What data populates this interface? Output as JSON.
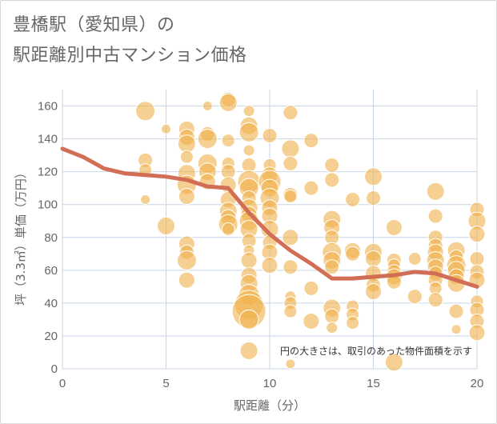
{
  "title_line1": "豊橋駅（愛知県）の",
  "title_line2": "駅距離別中古マンション価格",
  "chart_data": {
    "type": "scatter",
    "xlabel": "駅距離（分）",
    "ylabel": "坪（3.3㎡）単価（万円）",
    "xlim": [
      0,
      20
    ],
    "ylim": [
      0,
      170
    ],
    "xticks": [
      "0",
      "5",
      "10",
      "15",
      "20"
    ],
    "yticks": [
      "0",
      "20",
      "40",
      "60",
      "80",
      "100",
      "120",
      "140",
      "160"
    ],
    "annotation": "円の大きさは、取引のあった物件面積を示す",
    "grid": true,
    "colors": {
      "bubble": "#f0b14a",
      "bubble_stroke": "#ffffff",
      "line": "#d26e55",
      "grid": "#c8d6e6"
    },
    "trend_line": {
      "x": [
        0,
        1,
        2,
        3,
        4,
        5,
        6,
        7,
        8,
        9,
        10,
        11,
        12,
        13,
        14,
        15,
        16,
        17,
        18,
        19,
        20
      ],
      "y": [
        134,
        129,
        122,
        119,
        118,
        117,
        115,
        111,
        110,
        95,
        82,
        72,
        64,
        55,
        55,
        56,
        57,
        59,
        58,
        54,
        50
      ]
    },
    "points": [
      {
        "x": 4,
        "y": 157,
        "s": 12
      },
      {
        "x": 4,
        "y": 127,
        "s": 9
      },
      {
        "x": 4,
        "y": 121,
        "s": 8
      },
      {
        "x": 4,
        "y": 103,
        "s": 6
      },
      {
        "x": 5,
        "y": 146,
        "s": 6
      },
      {
        "x": 5,
        "y": 87,
        "s": 11
      },
      {
        "x": 6,
        "y": 146,
        "s": 10
      },
      {
        "x": 6,
        "y": 141,
        "s": 10
      },
      {
        "x": 6,
        "y": 137,
        "s": 11
      },
      {
        "x": 6,
        "y": 129,
        "s": 8
      },
      {
        "x": 6,
        "y": 119,
        "s": 11
      },
      {
        "x": 6,
        "y": 112,
        "s": 12
      },
      {
        "x": 6,
        "y": 105,
        "s": 10
      },
      {
        "x": 6,
        "y": 76,
        "s": 10
      },
      {
        "x": 6,
        "y": 71,
        "s": 9
      },
      {
        "x": 6,
        "y": 66,
        "s": 12
      },
      {
        "x": 6,
        "y": 54,
        "s": 10
      },
      {
        "x": 7,
        "y": 160,
        "s": 6
      },
      {
        "x": 7,
        "y": 143,
        "s": 9
      },
      {
        "x": 7,
        "y": 140,
        "s": 12
      },
      {
        "x": 7,
        "y": 125,
        "s": 12
      },
      {
        "x": 7,
        "y": 120,
        "s": 11
      },
      {
        "x": 7,
        "y": 114,
        "s": 10
      },
      {
        "x": 8,
        "y": 164,
        "s": 9
      },
      {
        "x": 8,
        "y": 162,
        "s": 11
      },
      {
        "x": 8,
        "y": 139,
        "s": 8
      },
      {
        "x": 8,
        "y": 125,
        "s": 8
      },
      {
        "x": 8,
        "y": 120,
        "s": 9
      },
      {
        "x": 8,
        "y": 112,
        "s": 10
      },
      {
        "x": 8,
        "y": 103,
        "s": 10
      },
      {
        "x": 8,
        "y": 96,
        "s": 11
      },
      {
        "x": 8,
        "y": 92,
        "s": 10
      },
      {
        "x": 8,
        "y": 88,
        "s": 12
      },
      {
        "x": 8,
        "y": 85,
        "s": 8
      },
      {
        "x": 9,
        "y": 157,
        "s": 7
      },
      {
        "x": 9,
        "y": 148,
        "s": 11
      },
      {
        "x": 9,
        "y": 144,
        "s": 12
      },
      {
        "x": 9,
        "y": 133,
        "s": 7
      },
      {
        "x": 9,
        "y": 124,
        "s": 9
      },
      {
        "x": 9,
        "y": 114,
        "s": 14
      },
      {
        "x": 9,
        "y": 110,
        "s": 12
      },
      {
        "x": 9,
        "y": 104,
        "s": 9
      },
      {
        "x": 9,
        "y": 98,
        "s": 11
      },
      {
        "x": 9,
        "y": 94,
        "s": 10
      },
      {
        "x": 9,
        "y": 90,
        "s": 12
      },
      {
        "x": 9,
        "y": 85,
        "s": 11
      },
      {
        "x": 9,
        "y": 78,
        "s": 9
      },
      {
        "x": 9,
        "y": 72,
        "s": 7
      },
      {
        "x": 9,
        "y": 66,
        "s": 10
      },
      {
        "x": 9,
        "y": 57,
        "s": 10
      },
      {
        "x": 9,
        "y": 52,
        "s": 11
      },
      {
        "x": 9,
        "y": 45,
        "s": 13
      },
      {
        "x": 9,
        "y": 39,
        "s": 18
      },
      {
        "x": 9,
        "y": 35,
        "s": 21
      },
      {
        "x": 9,
        "y": 30,
        "s": 12
      },
      {
        "x": 9,
        "y": 11,
        "s": 11
      },
      {
        "x": 10,
        "y": 142,
        "s": 9
      },
      {
        "x": 10,
        "y": 124,
        "s": 8
      },
      {
        "x": 10,
        "y": 118,
        "s": 10
      },
      {
        "x": 10,
        "y": 114,
        "s": 14
      },
      {
        "x": 10,
        "y": 110,
        "s": 11
      },
      {
        "x": 10,
        "y": 104,
        "s": 12
      },
      {
        "x": 10,
        "y": 98,
        "s": 10
      },
      {
        "x": 10,
        "y": 93,
        "s": 10
      },
      {
        "x": 10,
        "y": 85,
        "s": 11
      },
      {
        "x": 10,
        "y": 77,
        "s": 9
      },
      {
        "x": 10,
        "y": 71,
        "s": 10
      },
      {
        "x": 10,
        "y": 63,
        "s": 10
      },
      {
        "x": 11,
        "y": 156,
        "s": 9
      },
      {
        "x": 11,
        "y": 134,
        "s": 11
      },
      {
        "x": 11,
        "y": 125,
        "s": 9
      },
      {
        "x": 11,
        "y": 106,
        "s": 9
      },
      {
        "x": 11,
        "y": 105,
        "s": 8
      },
      {
        "x": 11,
        "y": 80,
        "s": 10
      },
      {
        "x": 11,
        "y": 62,
        "s": 9
      },
      {
        "x": 11,
        "y": 44,
        "s": 7
      },
      {
        "x": 11,
        "y": 40,
        "s": 8
      },
      {
        "x": 11,
        "y": 35,
        "s": 8
      },
      {
        "x": 11,
        "y": 3,
        "s": 6
      },
      {
        "x": 12,
        "y": 139,
        "s": 9
      },
      {
        "x": 12,
        "y": 110,
        "s": 9
      },
      {
        "x": 12,
        "y": 49,
        "s": 9
      },
      {
        "x": 12,
        "y": 29,
        "s": 10
      },
      {
        "x": 13,
        "y": 124,
        "s": 9
      },
      {
        "x": 13,
        "y": 115,
        "s": 9
      },
      {
        "x": 13,
        "y": 91,
        "s": 11
      },
      {
        "x": 13,
        "y": 86,
        "s": 10
      },
      {
        "x": 13,
        "y": 80,
        "s": 9
      },
      {
        "x": 13,
        "y": 71,
        "s": 12
      },
      {
        "x": 13,
        "y": 66,
        "s": 11
      },
      {
        "x": 13,
        "y": 62,
        "s": 9
      },
      {
        "x": 13,
        "y": 37,
        "s": 11
      },
      {
        "x": 13,
        "y": 32,
        "s": 9
      },
      {
        "x": 13,
        "y": 25,
        "s": 7
      },
      {
        "x": 14,
        "y": 103,
        "s": 9
      },
      {
        "x": 14,
        "y": 72,
        "s": 10
      },
      {
        "x": 14,
        "y": 70,
        "s": 9
      },
      {
        "x": 14,
        "y": 38,
        "s": 8
      },
      {
        "x": 14,
        "y": 33,
        "s": 8
      },
      {
        "x": 14,
        "y": 28,
        "s": 8
      },
      {
        "x": 15,
        "y": 117,
        "s": 11
      },
      {
        "x": 15,
        "y": 104,
        "s": 9
      },
      {
        "x": 15,
        "y": 71,
        "s": 11
      },
      {
        "x": 15,
        "y": 67,
        "s": 10
      },
      {
        "x": 15,
        "y": 58,
        "s": 10
      },
      {
        "x": 15,
        "y": 51,
        "s": 9
      },
      {
        "x": 15,
        "y": 47,
        "s": 10
      },
      {
        "x": 16,
        "y": 86,
        "s": 10
      },
      {
        "x": 16,
        "y": 66,
        "s": 9
      },
      {
        "x": 16,
        "y": 63,
        "s": 8
      },
      {
        "x": 16,
        "y": 59,
        "s": 9
      },
      {
        "x": 16,
        "y": 56,
        "s": 10
      },
      {
        "x": 16,
        "y": 53,
        "s": 9
      },
      {
        "x": 16,
        "y": 4,
        "s": 11
      },
      {
        "x": 17,
        "y": 67,
        "s": 8
      },
      {
        "x": 17,
        "y": 44,
        "s": 9
      },
      {
        "x": 18,
        "y": 108,
        "s": 11
      },
      {
        "x": 18,
        "y": 93,
        "s": 9
      },
      {
        "x": 18,
        "y": 80,
        "s": 9
      },
      {
        "x": 18,
        "y": 75,
        "s": 9
      },
      {
        "x": 18,
        "y": 71,
        "s": 10
      },
      {
        "x": 18,
        "y": 66,
        "s": 11
      },
      {
        "x": 18,
        "y": 62,
        "s": 10
      },
      {
        "x": 18,
        "y": 58,
        "s": 9
      },
      {
        "x": 18,
        "y": 54,
        "s": 9
      },
      {
        "x": 18,
        "y": 49,
        "s": 8
      },
      {
        "x": 18,
        "y": 42,
        "s": 9
      },
      {
        "x": 19,
        "y": 72,
        "s": 11
      },
      {
        "x": 19,
        "y": 68,
        "s": 9
      },
      {
        "x": 19,
        "y": 63,
        "s": 12
      },
      {
        "x": 19,
        "y": 60,
        "s": 11
      },
      {
        "x": 19,
        "y": 56,
        "s": 10
      },
      {
        "x": 19,
        "y": 52,
        "s": 11
      },
      {
        "x": 19,
        "y": 35,
        "s": 9
      },
      {
        "x": 19,
        "y": 24,
        "s": 6
      },
      {
        "x": 20,
        "y": 97,
        "s": 9
      },
      {
        "x": 20,
        "y": 90,
        "s": 11
      },
      {
        "x": 20,
        "y": 82,
        "s": 10
      },
      {
        "x": 20,
        "y": 67,
        "s": 9
      },
      {
        "x": 20,
        "y": 59,
        "s": 9
      },
      {
        "x": 20,
        "y": 54,
        "s": 10
      },
      {
        "x": 20,
        "y": 41,
        "s": 8
      },
      {
        "x": 20,
        "y": 36,
        "s": 9
      },
      {
        "x": 20,
        "y": 29,
        "s": 9
      },
      {
        "x": 20,
        "y": 22,
        "s": 10
      }
    ]
  }
}
